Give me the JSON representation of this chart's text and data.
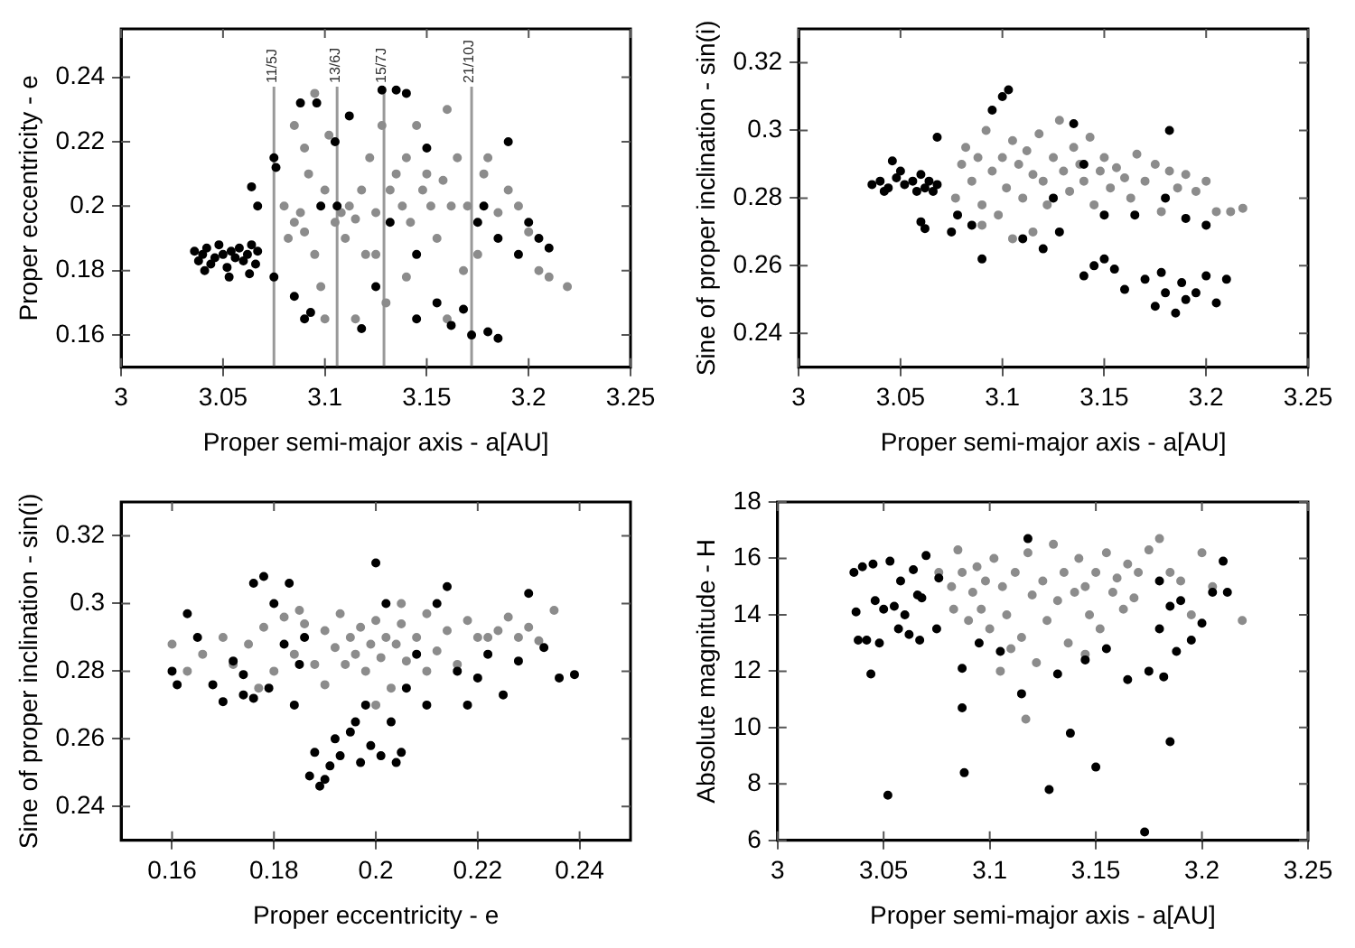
{
  "chart_data": [
    {
      "type": "scatter",
      "xlabel": "Proper semi-major axis - a[AU]",
      "ylabel": "Proper eccentricity - e",
      "xlim": [
        3,
        3.25
      ],
      "xticks": [
        3,
        3.05,
        3.1,
        3.15,
        3.2,
        3.25
      ],
      "ylim": [
        0.15,
        0.255
      ],
      "yticks": [
        0.16,
        0.18,
        0.2,
        0.22,
        0.24
      ],
      "marker": "circle",
      "legend": false,
      "ref_lines": [
        {
          "axis": "x",
          "value": 3.075,
          "label": "11/5J",
          "color": "#999999"
        },
        {
          "axis": "x",
          "value": 3.106,
          "label": "13/6J",
          "color": "#999999"
        },
        {
          "axis": "x",
          "value": 3.129,
          "label": "15/7J",
          "color": "#999999"
        },
        {
          "axis": "x",
          "value": 3.172,
          "label": "21/10J",
          "color": "#999999"
        }
      ],
      "series": [
        {
          "color": "#000000",
          "x": [
            3.036,
            3.038,
            3.04,
            3.042,
            3.044,
            3.046,
            3.048,
            3.05,
            3.052,
            3.054,
            3.056,
            3.058,
            3.06,
            3.062,
            3.064,
            3.066,
            3.067,
            3.041,
            3.053,
            3.063,
            3.064,
            3.067,
            3.075,
            3.076,
            3.075,
            3.085,
            3.09,
            3.093,
            3.088,
            3.096,
            3.105,
            3.106,
            3.112,
            3.118,
            3.125,
            3.128,
            3.135,
            3.14,
            3.145,
            3.15,
            3.155,
            3.162,
            3.168,
            3.172,
            3.175,
            3.178,
            3.18,
            3.185,
            3.185,
            3.19,
            3.195,
            3.2,
            3.205,
            3.21,
            3.145,
            3.132,
            3.098
          ],
          "values": [
            0.186,
            0.183,
            0.185,
            0.187,
            0.182,
            0.184,
            0.188,
            0.185,
            0.181,
            0.186,
            0.184,
            0.187,
            0.183,
            0.185,
            0.188,
            0.182,
            0.186,
            0.18,
            0.178,
            0.179,
            0.206,
            0.2,
            0.215,
            0.212,
            0.178,
            0.172,
            0.165,
            0.167,
            0.232,
            0.232,
            0.22,
            0.2,
            0.228,
            0.162,
            0.175,
            0.236,
            0.236,
            0.235,
            0.165,
            0.218,
            0.17,
            0.163,
            0.168,
            0.16,
            0.195,
            0.2,
            0.161,
            0.159,
            0.19,
            0.22,
            0.185,
            0.195,
            0.19,
            0.187,
            0.185,
            0.195,
            0.2
          ]
        },
        {
          "color": "#8c8c8c",
          "x": [
            3.08,
            3.082,
            3.085,
            3.088,
            3.09,
            3.092,
            3.095,
            3.098,
            3.1,
            3.085,
            3.09,
            3.095,
            3.1,
            3.105,
            3.108,
            3.11,
            3.112,
            3.115,
            3.118,
            3.12,
            3.122,
            3.125,
            3.128,
            3.13,
            3.132,
            3.135,
            3.138,
            3.14,
            3.142,
            3.145,
            3.148,
            3.15,
            3.152,
            3.155,
            3.158,
            3.16,
            3.162,
            3.165,
            3.168,
            3.17,
            3.175,
            3.178,
            3.18,
            3.185,
            3.19,
            3.195,
            3.2,
            3.205,
            3.21,
            3.219,
            3.115,
            3.14,
            3.102,
            3.125,
            3.16
          ],
          "values": [
            0.2,
            0.19,
            0.195,
            0.198,
            0.192,
            0.21,
            0.185,
            0.175,
            0.205,
            0.225,
            0.218,
            0.235,
            0.165,
            0.195,
            0.198,
            0.19,
            0.2,
            0.196,
            0.205,
            0.185,
            0.215,
            0.198,
            0.225,
            0.17,
            0.205,
            0.21,
            0.2,
            0.215,
            0.195,
            0.225,
            0.205,
            0.21,
            0.2,
            0.19,
            0.208,
            0.23,
            0.2,
            0.215,
            0.18,
            0.2,
            0.185,
            0.21,
            0.215,
            0.198,
            0.205,
            0.2,
            0.192,
            0.18,
            0.178,
            0.175,
            0.165,
            0.178,
            0.222,
            0.185,
            0.165
          ]
        }
      ]
    },
    {
      "type": "scatter",
      "xlabel": "Proper semi-major axis - a[AU]",
      "ylabel": "Sine of proper inclination - sin(i)",
      "xlim": [
        3,
        3.25
      ],
      "xticks": [
        3,
        3.05,
        3.1,
        3.15,
        3.2,
        3.25
      ],
      "ylim": [
        0.23,
        0.33
      ],
      "yticks": [
        0.24,
        0.26,
        0.28,
        0.3,
        0.32
      ],
      "marker": "circle",
      "legend": false,
      "series": [
        {
          "color": "#000000",
          "x": [
            3.036,
            3.04,
            3.044,
            3.048,
            3.05,
            3.052,
            3.056,
            3.06,
            3.062,
            3.064,
            3.066,
            3.068,
            3.046,
            3.058,
            3.042,
            3.06,
            3.062,
            3.068,
            3.075,
            3.078,
            3.085,
            3.09,
            3.095,
            3.1,
            3.103,
            3.11,
            3.12,
            3.128,
            3.135,
            3.14,
            3.145,
            3.15,
            3.155,
            3.16,
            3.165,
            3.17,
            3.175,
            3.178,
            3.18,
            3.182,
            3.185,
            3.188,
            3.19,
            3.195,
            3.2,
            3.205,
            3.21,
            3.2,
            3.19,
            3.18,
            3.15,
            3.125,
            3.14
          ],
          "values": [
            0.284,
            0.285,
            0.283,
            0.286,
            0.288,
            0.284,
            0.285,
            0.287,
            0.283,
            0.285,
            0.282,
            0.284,
            0.291,
            0.282,
            0.282,
            0.273,
            0.271,
            0.298,
            0.27,
            0.275,
            0.272,
            0.262,
            0.306,
            0.31,
            0.312,
            0.268,
            0.265,
            0.27,
            0.302,
            0.257,
            0.26,
            0.262,
            0.259,
            0.253,
            0.275,
            0.256,
            0.248,
            0.258,
            0.252,
            0.3,
            0.246,
            0.255,
            0.25,
            0.252,
            0.257,
            0.249,
            0.256,
            0.272,
            0.274,
            0.28,
            0.275,
            0.28,
            0.29
          ]
        },
        {
          "color": "#8c8c8c",
          "x": [
            3.077,
            3.08,
            3.082,
            3.085,
            3.088,
            3.09,
            3.092,
            3.095,
            3.098,
            3.1,
            3.102,
            3.105,
            3.108,
            3.11,
            3.112,
            3.115,
            3.118,
            3.12,
            3.122,
            3.125,
            3.128,
            3.13,
            3.133,
            3.135,
            3.138,
            3.14,
            3.143,
            3.145,
            3.148,
            3.15,
            3.153,
            3.156,
            3.16,
            3.163,
            3.166,
            3.17,
            3.175,
            3.178,
            3.182,
            3.186,
            3.19,
            3.195,
            3.2,
            3.205,
            3.212,
            3.218,
            3.105,
            3.09,
            3.115
          ],
          "values": [
            0.28,
            0.29,
            0.295,
            0.285,
            0.292,
            0.278,
            0.3,
            0.288,
            0.275,
            0.292,
            0.283,
            0.297,
            0.29,
            0.28,
            0.294,
            0.287,
            0.299,
            0.285,
            0.278,
            0.292,
            0.303,
            0.288,
            0.282,
            0.295,
            0.29,
            0.285,
            0.298,
            0.278,
            0.288,
            0.292,
            0.283,
            0.289,
            0.286,
            0.28,
            0.293,
            0.285,
            0.29,
            0.276,
            0.288,
            0.283,
            0.287,
            0.282,
            0.285,
            0.276,
            0.276,
            0.277,
            0.268,
            0.272,
            0.27
          ]
        }
      ]
    },
    {
      "type": "scatter",
      "xlabel": "Proper eccentricity - e",
      "ylabel": "Sine of proper inclination - sin(i)",
      "xlim": [
        0.15,
        0.25
      ],
      "xticks": [
        0.16,
        0.18,
        0.2,
        0.22,
        0.24
      ],
      "ylim": [
        0.23,
        0.33
      ],
      "yticks": [
        0.24,
        0.26,
        0.28,
        0.3,
        0.32
      ],
      "marker": "circle",
      "legend": false,
      "series": [
        {
          "color": "#000000",
          "x": [
            0.16,
            0.161,
            0.163,
            0.165,
            0.168,
            0.17,
            0.172,
            0.174,
            0.176,
            0.178,
            0.179,
            0.18,
            0.182,
            0.183,
            0.184,
            0.185,
            0.186,
            0.187,
            0.188,
            0.189,
            0.19,
            0.191,
            0.192,
            0.193,
            0.195,
            0.196,
            0.197,
            0.198,
            0.199,
            0.2,
            0.201,
            0.202,
            0.203,
            0.204,
            0.205,
            0.206,
            0.208,
            0.21,
            0.212,
            0.214,
            0.216,
            0.218,
            0.22,
            0.222,
            0.225,
            0.228,
            0.23,
            0.233,
            0.236,
            0.239,
            0.176,
            0.174
          ],
          "values": [
            0.28,
            0.276,
            0.297,
            0.29,
            0.276,
            0.271,
            0.283,
            0.273,
            0.306,
            0.308,
            0.275,
            0.3,
            0.288,
            0.306,
            0.27,
            0.282,
            0.29,
            0.249,
            0.256,
            0.246,
            0.248,
            0.252,
            0.26,
            0.255,
            0.262,
            0.265,
            0.253,
            0.27,
            0.258,
            0.312,
            0.255,
            0.3,
            0.265,
            0.253,
            0.256,
            0.275,
            0.285,
            0.27,
            0.3,
            0.305,
            0.28,
            0.27,
            0.278,
            0.285,
            0.273,
            0.283,
            0.303,
            0.287,
            0.278,
            0.279,
            0.272,
            0.279
          ]
        },
        {
          "color": "#8c8c8c",
          "x": [
            0.16,
            0.163,
            0.166,
            0.17,
            0.172,
            0.175,
            0.178,
            0.18,
            0.182,
            0.184,
            0.186,
            0.188,
            0.19,
            0.192,
            0.193,
            0.194,
            0.195,
            0.196,
            0.197,
            0.198,
            0.199,
            0.2,
            0.201,
            0.202,
            0.203,
            0.204,
            0.205,
            0.206,
            0.208,
            0.21,
            0.212,
            0.214,
            0.216,
            0.218,
            0.22,
            0.222,
            0.224,
            0.226,
            0.228,
            0.23,
            0.232,
            0.235,
            0.205,
            0.19,
            0.185,
            0.2,
            0.21,
            0.177
          ],
          "values": [
            0.288,
            0.28,
            0.285,
            0.29,
            0.282,
            0.288,
            0.293,
            0.28,
            0.296,
            0.285,
            0.294,
            0.282,
            0.292,
            0.287,
            0.297,
            0.282,
            0.29,
            0.285,
            0.293,
            0.28,
            0.288,
            0.295,
            0.284,
            0.29,
            0.275,
            0.288,
            0.294,
            0.283,
            0.29,
            0.297,
            0.286,
            0.292,
            0.282,
            0.295,
            0.29,
            0.29,
            0.292,
            0.296,
            0.29,
            0.293,
            0.289,
            0.298,
            0.3,
            0.276,
            0.298,
            0.27,
            0.28,
            0.275
          ]
        }
      ]
    },
    {
      "type": "scatter",
      "xlabel": "Proper semi-major axis - a[AU]",
      "ylabel": "Absolute magnitude - H",
      "xlim": [
        3,
        3.25
      ],
      "xticks": [
        3,
        3.05,
        3.1,
        3.15,
        3.2,
        3.25
      ],
      "ylim": [
        6,
        18
      ],
      "yticks": [
        6,
        8,
        10,
        12,
        14,
        16,
        18
      ],
      "marker": "circle",
      "legend": false,
      "series": [
        {
          "color": "#000000",
          "x": [
            3.036,
            3.037,
            3.038,
            3.04,
            3.042,
            3.044,
            3.045,
            3.046,
            3.048,
            3.05,
            3.052,
            3.053,
            3.055,
            3.057,
            3.058,
            3.06,
            3.062,
            3.064,
            3.066,
            3.067,
            3.068,
            3.07,
            3.075,
            3.076,
            3.087,
            3.087,
            3.088,
            3.095,
            3.105,
            3.115,
            3.118,
            3.128,
            3.132,
            3.138,
            3.145,
            3.15,
            3.155,
            3.165,
            3.173,
            3.175,
            3.18,
            3.182,
            3.185,
            3.188,
            3.19,
            3.195,
            3.2,
            3.205,
            3.21,
            3.212,
            3.18,
            3.185
          ],
          "values": [
            15.5,
            14.1,
            13.1,
            15.7,
            13.1,
            11.9,
            15.8,
            14.5,
            13.0,
            14.2,
            7.6,
            15.9,
            14.3,
            13.5,
            15.2,
            14.0,
            13.3,
            15.6,
            14.7,
            13.1,
            14.6,
            16.1,
            13.5,
            15.3,
            12.1,
            10.7,
            8.4,
            13.0,
            12.7,
            11.2,
            16.7,
            7.8,
            11.9,
            9.8,
            12.4,
            8.6,
            12.8,
            11.7,
            6.3,
            12.0,
            13.5,
            11.8,
            9.5,
            12.7,
            14.5,
            13.1,
            13.7,
            14.8,
            15.9,
            14.8,
            15.2,
            14.3
          ]
        },
        {
          "color": "#8c8c8c",
          "x": [
            3.076,
            3.082,
            3.083,
            3.085,
            3.087,
            3.09,
            3.092,
            3.094,
            3.096,
            3.098,
            3.1,
            3.102,
            3.106,
            3.108,
            3.11,
            3.112,
            3.115,
            3.117,
            3.118,
            3.12,
            3.122,
            3.125,
            3.127,
            3.13,
            3.132,
            3.135,
            3.137,
            3.14,
            3.142,
            3.145,
            3.147,
            3.15,
            3.152,
            3.155,
            3.158,
            3.16,
            3.163,
            3.165,
            3.168,
            3.17,
            3.175,
            3.18,
            3.185,
            3.19,
            3.195,
            3.2,
            3.205,
            3.219,
            3.105,
            3.145
          ],
          "values": [
            15.5,
            15.0,
            14.2,
            16.3,
            15.5,
            13.8,
            14.8,
            15.7,
            14.2,
            15.2,
            13.5,
            16.0,
            15.0,
            14.0,
            12.8,
            15.5,
            13.2,
            10.3,
            16.2,
            14.7,
            12.3,
            15.2,
            13.8,
            16.5,
            14.5,
            15.5,
            13.0,
            14.8,
            16.0,
            15.0,
            14.0,
            15.5,
            13.5,
            16.2,
            14.8,
            15.3,
            14.2,
            15.8,
            14.6,
            15.5,
            16.3,
            16.7,
            15.5,
            15.2,
            14.0,
            16.2,
            15.0,
            13.8,
            12.0,
            12.6
          ]
        }
      ]
    }
  ]
}
